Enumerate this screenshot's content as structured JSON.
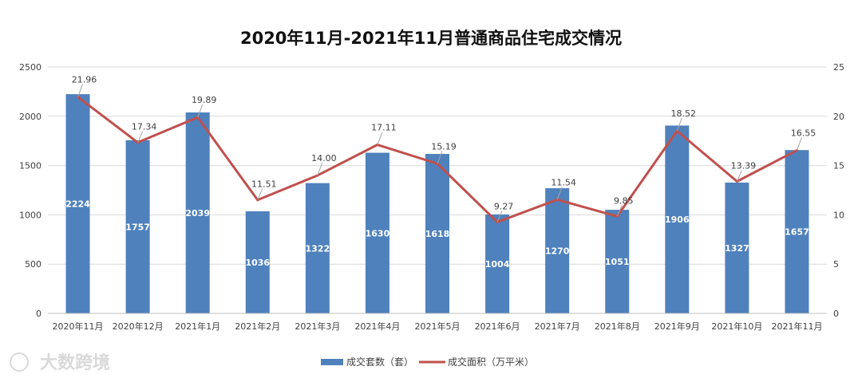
{
  "chart_data": {
    "type": "bar",
    "title": "2020年11月-2021年11月普通商品住宅成交情况",
    "categories": [
      "2020年11月",
      "2020年12月",
      "2021年1月",
      "2021年2月",
      "2021年3月",
      "2021年4月",
      "2021年5月",
      "2021年6月",
      "2021年7月",
      "2021年8月",
      "2021年9月",
      "2021年10月",
      "2021年11月"
    ],
    "series": [
      {
        "name": "成交套数（套）",
        "type": "bar",
        "axis": "left",
        "color": "#4f81bd",
        "values": [
          2224,
          1757,
          2039,
          1036,
          1322,
          1630,
          1618,
          1004,
          1270,
          1051,
          1906,
          1327,
          1657
        ]
      },
      {
        "name": "成交面积（万平米）",
        "type": "line",
        "axis": "right",
        "color": "#c0504d",
        "values": [
          21.96,
          17.34,
          19.89,
          11.51,
          14.0,
          17.11,
          15.19,
          9.27,
          11.54,
          9.85,
          18.52,
          13.39,
          16.55
        ]
      }
    ],
    "y_left": {
      "min": 0,
      "max": 2500,
      "ticks": [
        "0",
        "500",
        "1000",
        "1500",
        "2000",
        "2500"
      ]
    },
    "y_right": {
      "min": 0,
      "max": 25,
      "ticks": [
        "0",
        "5",
        "10",
        "15",
        "20",
        "25"
      ]
    },
    "grid": true,
    "legend_position": "bottom"
  },
  "watermark": "大数跨境"
}
